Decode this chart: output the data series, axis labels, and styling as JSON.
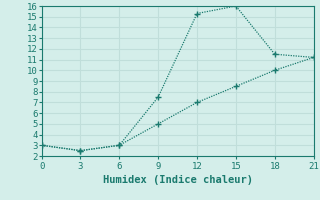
{
  "line1_x": [
    0,
    3,
    6,
    9,
    12,
    15,
    18,
    21
  ],
  "line1_y": [
    3.0,
    2.5,
    3.0,
    7.5,
    15.3,
    16.0,
    11.5,
    11.2
  ],
  "line2_x": [
    0,
    3,
    6,
    9,
    12,
    15,
    18,
    21
  ],
  "line2_y": [
    3.0,
    2.5,
    3.0,
    5.0,
    7.0,
    8.5,
    10.0,
    11.2
  ],
  "line_color": "#1a7a6e",
  "background_color": "#d4eeea",
  "grid_color": "#c0deda",
  "xlabel": "Humidex (Indice chaleur)",
  "xlim": [
    0,
    21
  ],
  "ylim": [
    2,
    16
  ],
  "xticks": [
    0,
    3,
    6,
    9,
    12,
    15,
    18,
    21
  ],
  "yticks": [
    2,
    3,
    4,
    5,
    6,
    7,
    8,
    9,
    10,
    11,
    12,
    13,
    14,
    15,
    16
  ],
  "xlabel_fontsize": 7.5,
  "tick_fontsize": 6.5
}
